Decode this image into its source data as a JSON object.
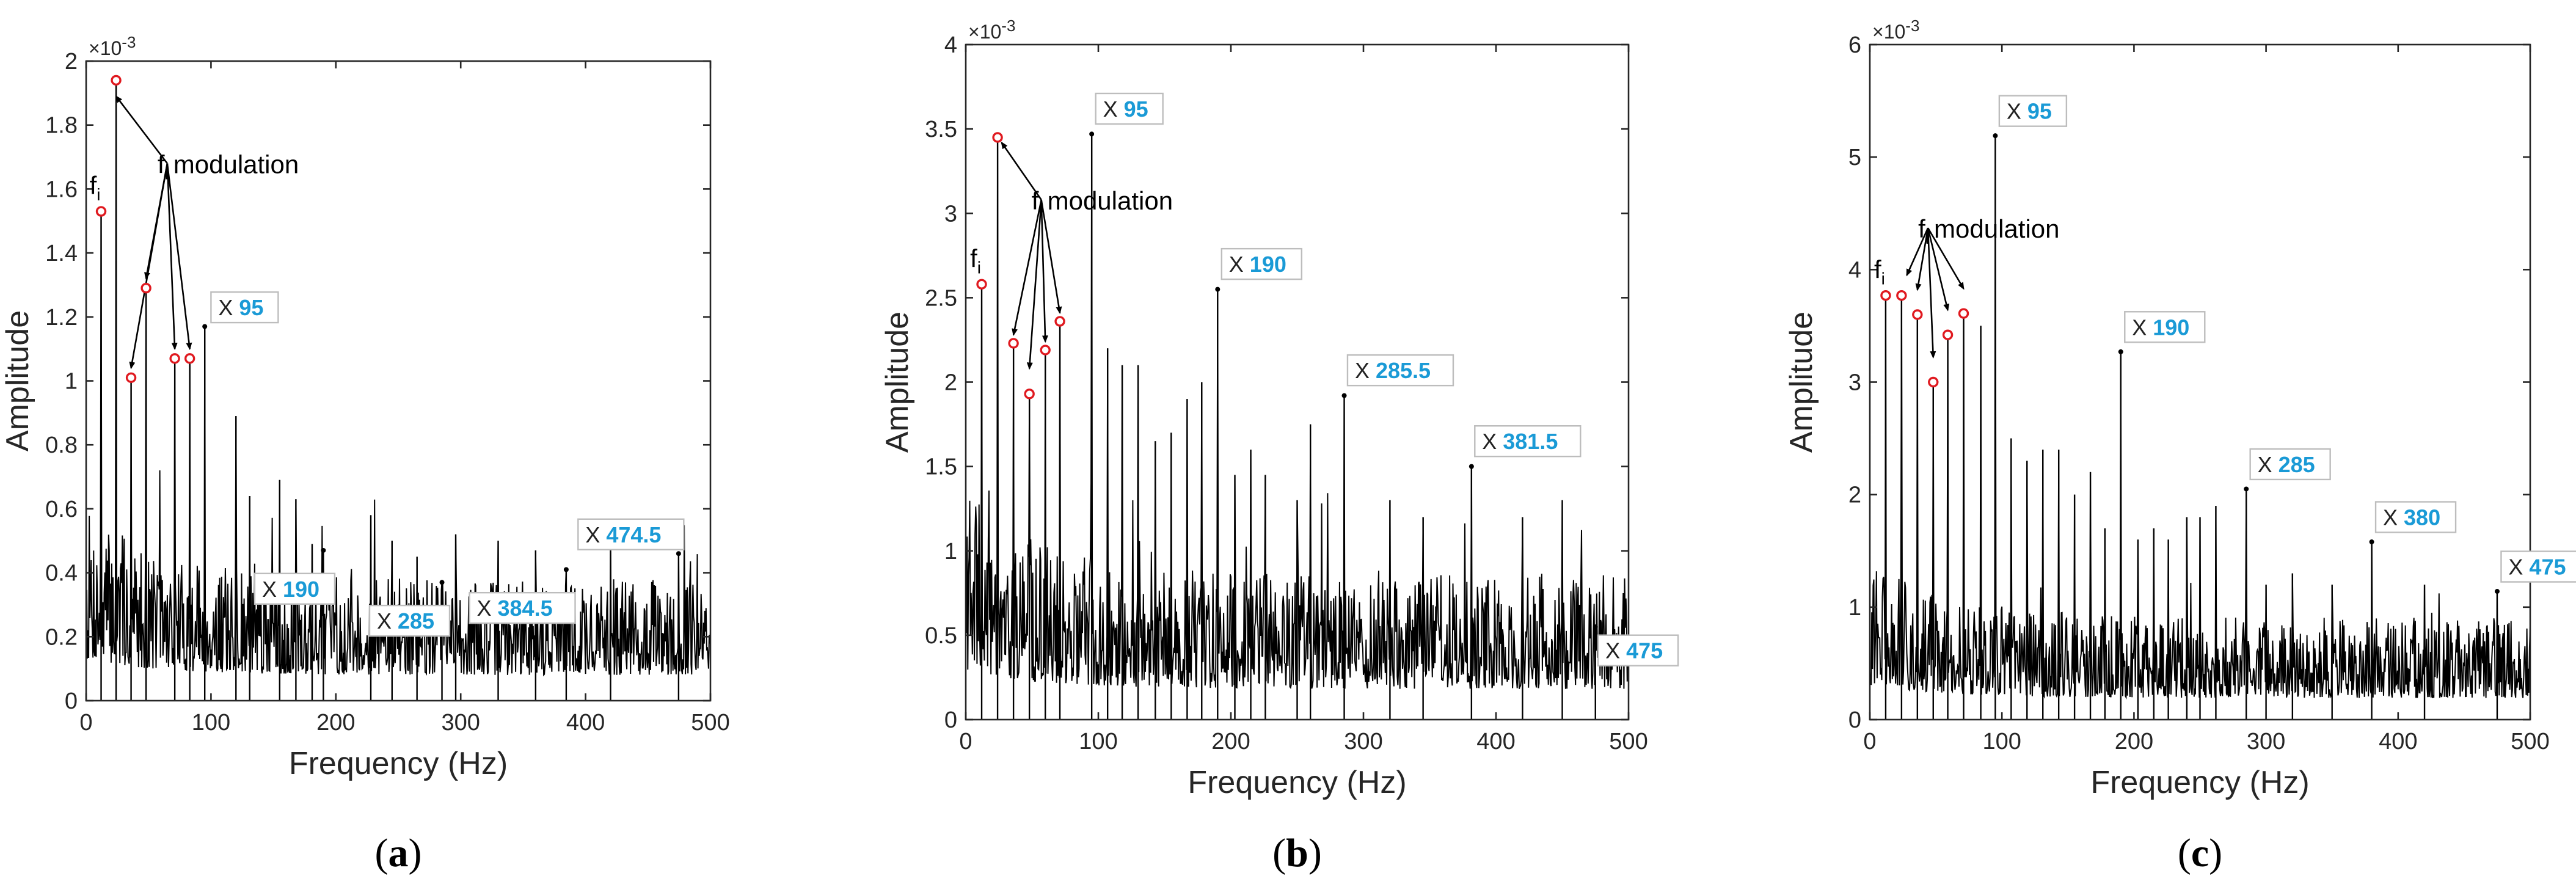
{
  "chart_data": [
    {
      "id": "a",
      "type": "line",
      "caption_letter": "a",
      "xlabel": "Frequency (Hz)",
      "ylabel": "Amplitude",
      "xlim": [
        0,
        500
      ],
      "ylim": [
        0,
        0.002
      ],
      "xticks": [
        0,
        100,
        200,
        300,
        400,
        500
      ],
      "xtick_labels": [
        "0",
        "100",
        "200",
        "300",
        "400",
        "500"
      ],
      "yticks": [
        0,
        0.0002,
        0.0004,
        0.0006,
        0.0008,
        0.001,
        0.0012,
        0.0014,
        0.0016,
        0.0018,
        0.002
      ],
      "ytick_labels": [
        "0",
        "0.2",
        "0.4",
        "0.6",
        "0.8",
        "1",
        "1.2",
        "1.4",
        "1.6",
        "1.8",
        "2"
      ],
      "exponent_label": "×10",
      "exponent_power": "-3",
      "noise_level": 0.00023,
      "red_markers": [
        {
          "x": 12,
          "y": 0.00153
        },
        {
          "x": 24,
          "y": 0.00194
        },
        {
          "x": 36,
          "y": 0.00101
        },
        {
          "x": 48,
          "y": 0.00129
        },
        {
          "x": 71,
          "y": 0.00107
        },
        {
          "x": 83,
          "y": 0.00107
        }
      ],
      "fi_label": "f",
      "fi_sub": "i",
      "fi_point": {
        "x": 12,
        "y": 0.00153
      },
      "modulation_label": "modulation",
      "modulation_anchor": {
        "x": 65,
        "y": 0.00168
      },
      "modulation_targets": [
        {
          "x": 24,
          "y": 0.00189
        },
        {
          "x": 36,
          "y": 0.00104
        },
        {
          "x": 48,
          "y": 0.00132
        },
        {
          "x": 71,
          "y": 0.0011
        },
        {
          "x": 83,
          "y": 0.0011
        }
      ],
      "datatips": [
        {
          "x": 95,
          "y": 0.00117,
          "prefix": "X",
          "label": "95",
          "box": {
            "x": 100,
            "y": 0.00123
          }
        },
        {
          "x": 190,
          "y": 0.00047,
          "prefix": "X",
          "label": "190",
          "box": {
            "x": 135,
            "y": 0.00035
          }
        },
        {
          "x": 285,
          "y": 0.00037,
          "prefix": "X",
          "label": "285",
          "box": {
            "x": 227,
            "y": 0.00025
          }
        },
        {
          "x": 384.5,
          "y": 0.00041,
          "prefix": "X",
          "label": "384.5",
          "box": {
            "x": 307,
            "y": 0.00029
          }
        },
        {
          "x": 474.5,
          "y": 0.00046,
          "prefix": "X",
          "label": "474.5",
          "box": {
            "x": 394,
            "y": 0.00052
          }
        }
      ],
      "extra_peaks": [
        {
          "x": 120,
          "y": 0.00089
        },
        {
          "x": 131,
          "y": 0.00064
        },
        {
          "x": 155,
          "y": 0.00069
        },
        {
          "x": 168,
          "y": 0.00063
        },
        {
          "x": 181,
          "y": 0.00049
        },
        {
          "x": 228,
          "y": 0.00058
        },
        {
          "x": 245,
          "y": 0.0005
        },
        {
          "x": 265,
          "y": 0.00045
        },
        {
          "x": 296,
          "y": 0.00052
        },
        {
          "x": 330,
          "y": 0.0005
        },
        {
          "x": 360,
          "y": 0.00047
        },
        {
          "x": 420,
          "y": 0.00049
        }
      ],
      "seed": 7
    },
    {
      "id": "b",
      "type": "line",
      "caption_letter": "b",
      "xlabel": "Frequency (Hz)",
      "ylabel": "Amplitude",
      "xlim": [
        0,
        500
      ],
      "ylim": [
        0,
        0.004
      ],
      "xticks": [
        0,
        100,
        200,
        300,
        400,
        500
      ],
      "xtick_labels": [
        "0",
        "100",
        "200",
        "300",
        "400",
        "500"
      ],
      "yticks": [
        0,
        0.0005,
        0.001,
        0.0015,
        0.002,
        0.0025,
        0.003,
        0.0035,
        0.004
      ],
      "ytick_labels": [
        "0",
        "0.5",
        "1",
        "1.5",
        "2",
        "2.5",
        "3",
        "3.5",
        "4"
      ],
      "exponent_label": "×10",
      "exponent_power": "-3",
      "noise_level": 0.00052,
      "red_markers": [
        {
          "x": 12,
          "y": 0.00258
        },
        {
          "x": 24,
          "y": 0.00345
        },
        {
          "x": 36,
          "y": 0.00223
        },
        {
          "x": 48,
          "y": 0.00193
        },
        {
          "x": 60,
          "y": 0.00219
        },
        {
          "x": 71,
          "y": 0.00236
        }
      ],
      "fi_label": "f",
      "fi_sub": "i",
      "fi_point": {
        "x": 12,
        "y": 0.00258
      },
      "modulation_label": "modulation",
      "modulation_anchor": {
        "x": 57,
        "y": 0.00308
      },
      "modulation_targets": [
        {
          "x": 27,
          "y": 0.00342
        },
        {
          "x": 36,
          "y": 0.00228
        },
        {
          "x": 48,
          "y": 0.00208
        },
        {
          "x": 60,
          "y": 0.00224
        },
        {
          "x": 71,
          "y": 0.00241
        }
      ],
      "datatips": [
        {
          "x": 95,
          "y": 0.00347,
          "prefix": "X",
          "label": "95",
          "box": {
            "x": 98,
            "y": 0.00362
          }
        },
        {
          "x": 190,
          "y": 0.00255,
          "prefix": "X",
          "label": "190",
          "box": {
            "x": 193,
            "y": 0.0027
          }
        },
        {
          "x": 285.5,
          "y": 0.00192,
          "prefix": "X",
          "label": "285.5",
          "box": {
            "x": 288,
            "y": 0.00207
          }
        },
        {
          "x": 381.5,
          "y": 0.0015,
          "prefix": "X",
          "label": "381.5",
          "box": {
            "x": 384,
            "y": 0.00165
          }
        },
        {
          "x": 475,
          "y": 0.00055,
          "prefix": "X",
          "label": "475",
          "box": {
            "x": 477,
            "y": 0.00041
          }
        }
      ],
      "extra_peaks": [
        {
          "x": 107,
          "y": 0.0022
        },
        {
          "x": 118,
          "y": 0.0021
        },
        {
          "x": 130,
          "y": 0.0021
        },
        {
          "x": 143,
          "y": 0.00165
        },
        {
          "x": 155,
          "y": 0.0017
        },
        {
          "x": 167,
          "y": 0.0019
        },
        {
          "x": 178,
          "y": 0.002
        },
        {
          "x": 203,
          "y": 0.00145
        },
        {
          "x": 215,
          "y": 0.0016
        },
        {
          "x": 226,
          "y": 0.00145
        },
        {
          "x": 250,
          "y": 0.0013
        },
        {
          "x": 260,
          "y": 0.00175
        },
        {
          "x": 320,
          "y": 0.0013
        },
        {
          "x": 345,
          "y": 0.0012
        },
        {
          "x": 420,
          "y": 0.0012
        },
        {
          "x": 450,
          "y": 0.0013
        }
      ],
      "seed": 19
    },
    {
      "id": "c",
      "type": "line",
      "caption_letter": "c",
      "xlabel": "Frequency (Hz)",
      "ylabel": "Amplitude",
      "xlim": [
        0,
        500
      ],
      "ylim": [
        0,
        0.006
      ],
      "xticks": [
        0,
        100,
        200,
        300,
        400,
        500
      ],
      "xtick_labels": [
        "0",
        "100",
        "200",
        "300",
        "400",
        "500"
      ],
      "yticks": [
        0,
        0.001,
        0.002,
        0.003,
        0.004,
        0.005,
        0.006
      ],
      "ytick_labels": [
        "0",
        "1",
        "2",
        "3",
        "4",
        "5",
        "6"
      ],
      "exponent_label": "×10",
      "exponent_power": "-3",
      "noise_level": 0.00055,
      "red_markers": [
        {
          "x": 12,
          "y": 0.00377
        },
        {
          "x": 24,
          "y": 0.00377
        },
        {
          "x": 36,
          "y": 0.0036
        },
        {
          "x": 48,
          "y": 0.003
        },
        {
          "x": 59,
          "y": 0.00342
        },
        {
          "x": 71,
          "y": 0.00361
        }
      ],
      "fi_label": "f",
      "fi_sub": "i",
      "fi_point": {
        "x": 12,
        "y": 0.00377
      },
      "modulation_label": "modulation",
      "modulation_anchor": {
        "x": 44,
        "y": 0.00437
      },
      "modulation_targets": [
        {
          "x": 28,
          "y": 0.00395
        },
        {
          "x": 36,
          "y": 0.00382
        },
        {
          "x": 48,
          "y": 0.00322
        },
        {
          "x": 59,
          "y": 0.00364
        },
        {
          "x": 71,
          "y": 0.00383
        }
      ],
      "datatips": [
        {
          "x": 95,
          "y": 0.00519,
          "prefix": "X",
          "label": "95",
          "box": {
            "x": 98,
            "y": 0.00541
          }
        },
        {
          "x": 190,
          "y": 0.00327,
          "prefix": "X",
          "label": "190",
          "box": {
            "x": 193,
            "y": 0.00349
          }
        },
        {
          "x": 285,
          "y": 0.00205,
          "prefix": "X",
          "label": "285",
          "box": {
            "x": 288,
            "y": 0.00227
          }
        },
        {
          "x": 380,
          "y": 0.00158,
          "prefix": "X",
          "label": "380",
          "box": {
            "x": 383,
            "y": 0.0018
          }
        },
        {
          "x": 475,
          "y": 0.00114,
          "prefix": "X",
          "label": "475",
          "box": {
            "x": 478,
            "y": 0.00136
          }
        }
      ],
      "extra_peaks": [
        {
          "x": 84,
          "y": 0.0035
        },
        {
          "x": 107,
          "y": 0.0025
        },
        {
          "x": 119,
          "y": 0.0023
        },
        {
          "x": 131,
          "y": 0.0024
        },
        {
          "x": 143,
          "y": 0.0024
        },
        {
          "x": 155,
          "y": 0.002
        },
        {
          "x": 167,
          "y": 0.0022
        },
        {
          "x": 178,
          "y": 0.0017
        },
        {
          "x": 203,
          "y": 0.0016
        },
        {
          "x": 215,
          "y": 0.0017
        },
        {
          "x": 226,
          "y": 0.0016
        },
        {
          "x": 240,
          "y": 0.0018
        },
        {
          "x": 250,
          "y": 0.0018
        },
        {
          "x": 262,
          "y": 0.0019
        },
        {
          "x": 300,
          "y": 0.0012
        },
        {
          "x": 320,
          "y": 0.0013
        },
        {
          "x": 350,
          "y": 0.0012
        },
        {
          "x": 420,
          "y": 0.0012
        }
      ],
      "seed": 31
    }
  ]
}
